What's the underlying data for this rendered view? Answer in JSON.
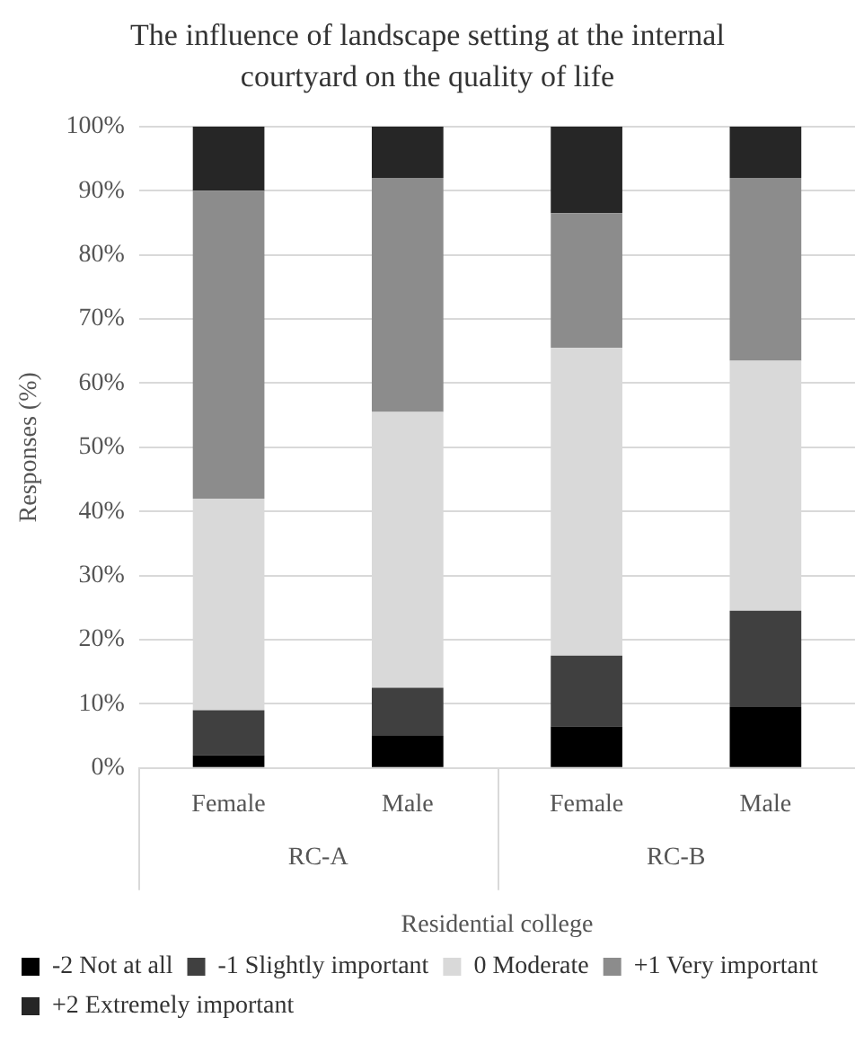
{
  "chart_data": {
    "type": "bar",
    "stacked": true,
    "title": "The influence of landscape setting at the internal courtyard on the quality of life",
    "xlabel": "Residential college",
    "ylabel": "Responses (%)",
    "categories": [
      "Female",
      "Male",
      "Female",
      "Male"
    ],
    "series": [
      {
        "name": "-2 Not at all",
        "color": "#000000",
        "values": [
          2,
          5,
          6.5,
          9.5
        ]
      },
      {
        "name": "-1 Slightly important",
        "color": "#404040",
        "values": [
          7,
          7.5,
          11,
          15
        ]
      },
      {
        "name": "0 Moderate",
        "color": "#d9d9d9",
        "values": [
          33,
          43,
          48,
          39
        ]
      },
      {
        "name": "+1 Very important",
        "color": "#8c8c8c",
        "values": [
          48,
          36.5,
          21,
          28.5
        ]
      },
      {
        "name": "+2 Extremely important",
        "color": "#262626",
        "values": [
          10,
          8,
          13.5,
          8
        ]
      }
    ],
    "ylim": [
      0,
      100
    ],
    "yticks": [
      {
        "value": 0,
        "label": "0%"
      },
      {
        "value": 10,
        "label": "10%"
      },
      {
        "value": 20,
        "label": "20%"
      },
      {
        "value": 30,
        "label": "30%"
      },
      {
        "value": 40,
        "label": "40%"
      },
      {
        "value": 50,
        "label": "50%"
      },
      {
        "value": 60,
        "label": "60%"
      },
      {
        "value": 70,
        "label": "70%"
      },
      {
        "value": 80,
        "label": "80%"
      },
      {
        "value": 90,
        "label": "90%"
      },
      {
        "value": 100,
        "label": "100%"
      }
    ],
    "annotations": [
      "RC-A",
      "RC-B"
    ],
    "grid": "y",
    "legend": "bottom"
  }
}
